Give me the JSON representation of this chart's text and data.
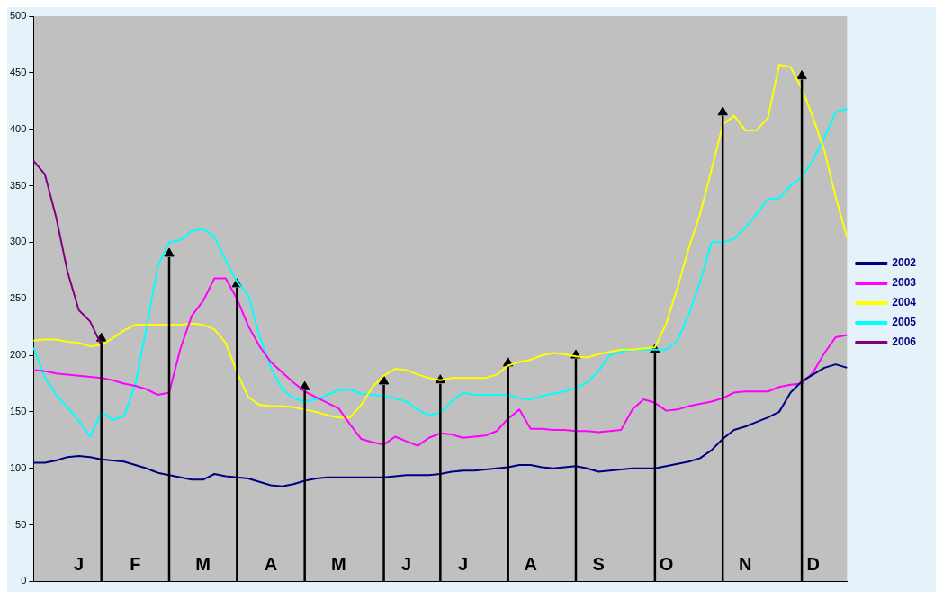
{
  "chart_data": {
    "type": "line",
    "categories": [
      null,
      null,
      null,
      null,
      "J",
      null,
      null,
      null,
      null,
      "F",
      null,
      null,
      null,
      null,
      null,
      "M",
      null,
      null,
      null,
      null,
      null,
      "A",
      null,
      null,
      null,
      null,
      null,
      "M",
      null,
      null,
      null,
      null,
      null,
      "J",
      null,
      null,
      null,
      null,
      "J",
      null,
      null,
      null,
      null,
      null,
      "A",
      null,
      null,
      null,
      null,
      null,
      "S",
      null,
      null,
      null,
      null,
      null,
      "O",
      null,
      null,
      null,
      null,
      null,
      null,
      "N",
      null,
      null,
      null,
      null,
      null,
      "D",
      null,
      null,
      null
    ],
    "ylim": [
      0,
      500
    ],
    "yticks": [
      0,
      50,
      100,
      150,
      200,
      250,
      300,
      350,
      400,
      450,
      500
    ],
    "grid": false,
    "legend": "right",
    "marker": "none",
    "line_style": "solid",
    "series": [
      {
        "name": "2002",
        "color": "#000080",
        "values": [
          105,
          105,
          107,
          110,
          111,
          110,
          108,
          107,
          106,
          103,
          100,
          96,
          94,
          92,
          90,
          90,
          95,
          93,
          92,
          91,
          88,
          85,
          84,
          86,
          89,
          91,
          92,
          92,
          92,
          92,
          92,
          92,
          93,
          94,
          94,
          94,
          95,
          97,
          98,
          98,
          99,
          100,
          101,
          103,
          103,
          101,
          100,
          101,
          102,
          100,
          97,
          98,
          99,
          100,
          100,
          100,
          102,
          104,
          106,
          109,
          116,
          126,
          134,
          137,
          141,
          145,
          150,
          167,
          177,
          183,
          189,
          192,
          189
        ]
      },
      {
        "name": "2003",
        "color": "#ff00ff",
        "values": [
          187,
          186,
          184,
          183,
          182,
          181,
          180,
          178,
          175,
          173,
          170,
          165,
          167,
          206,
          235,
          248,
          268,
          268,
          250,
          226,
          208,
          194,
          185,
          176,
          168,
          163,
          158,
          153,
          139,
          126,
          123,
          121,
          128,
          124,
          120,
          127,
          131,
          130,
          127,
          128,
          129,
          133,
          144,
          152,
          135,
          135,
          134,
          134,
          133,
          133,
          132,
          133,
          134,
          152,
          161,
          158,
          151,
          152,
          155,
          157,
          159,
          162,
          167,
          168,
          168,
          168,
          172,
          174,
          175,
          185,
          202,
          216,
          218
        ]
      },
      {
        "name": "2004",
        "color": "#ffff00",
        "values": [
          213,
          214,
          214,
          212,
          211,
          208,
          209,
          215,
          222,
          227,
          227,
          227,
          227,
          227,
          228,
          227,
          223,
          211,
          185,
          163,
          156,
          155,
          155,
          154,
          152,
          150,
          147,
          145,
          145,
          156,
          172,
          182,
          188,
          187,
          183,
          180,
          178,
          180,
          180,
          180,
          180,
          183,
          191,
          194,
          196,
          200,
          202,
          201,
          199,
          198,
          201,
          203,
          205,
          205,
          206,
          207,
          228,
          260,
          295,
          325,
          364,
          404,
          412,
          399,
          399,
          410,
          457,
          455,
          436,
          410,
          381,
          340,
          304
        ]
      },
      {
        "name": "2005",
        "color": "#00ffff",
        "values": [
          207,
          180,
          165,
          154,
          142,
          128,
          150,
          143,
          146,
          174,
          225,
          279,
          300,
          302,
          310,
          312,
          305,
          284,
          265,
          253,
          217,
          189,
          170,
          162,
          159,
          161,
          165,
          169,
          170,
          166,
          165,
          164,
          162,
          159,
          152,
          147,
          149,
          159,
          167,
          165,
          165,
          165,
          165,
          162,
          161,
          164,
          166,
          168,
          171,
          176,
          186,
          200,
          203,
          205,
          205,
          205,
          205,
          213,
          236,
          265,
          300,
          300,
          303,
          313,
          325,
          338,
          339,
          350,
          358,
          373,
          393,
          415,
          418
        ]
      },
      {
        "name": "2006",
        "color": "#800080",
        "values": [
          372,
          360,
          322,
          274,
          240,
          230,
          209,
          null,
          null,
          null,
          null,
          null,
          null,
          null,
          null,
          null,
          null,
          null,
          null,
          null,
          null,
          null,
          null,
          null,
          null,
          null,
          null,
          null,
          null,
          null,
          null,
          null,
          null,
          null,
          null,
          null,
          null,
          null,
          null,
          null,
          null,
          null,
          null,
          null,
          null,
          null,
          null,
          null,
          null,
          null,
          null,
          null,
          null,
          null,
          null,
          null,
          null,
          null,
          null,
          null,
          null,
          null,
          null,
          null,
          null,
          null,
          null,
          null,
          null,
          null,
          null,
          null,
          null
        ]
      },
      {
        "type": "lollipop",
        "color": "#000000",
        "marker": "triangle",
        "values": [
          null,
          null,
          null,
          null,
          null,
          null,
          215,
          null,
          null,
          null,
          null,
          null,
          290,
          null,
          null,
          null,
          null,
          null,
          263,
          null,
          null,
          null,
          null,
          null,
          172,
          null,
          null,
          null,
          null,
          null,
          null,
          177,
          null,
          null,
          null,
          null,
          178,
          null,
          null,
          null,
          null,
          null,
          193,
          null,
          null,
          null,
          null,
          null,
          200,
          null,
          null,
          null,
          null,
          null,
          null,
          205,
          null,
          null,
          null,
          null,
          null,
          415,
          null,
          null,
          null,
          null,
          null,
          null,
          447,
          null,
          null,
          null,
          null
        ]
      }
    ]
  }
}
